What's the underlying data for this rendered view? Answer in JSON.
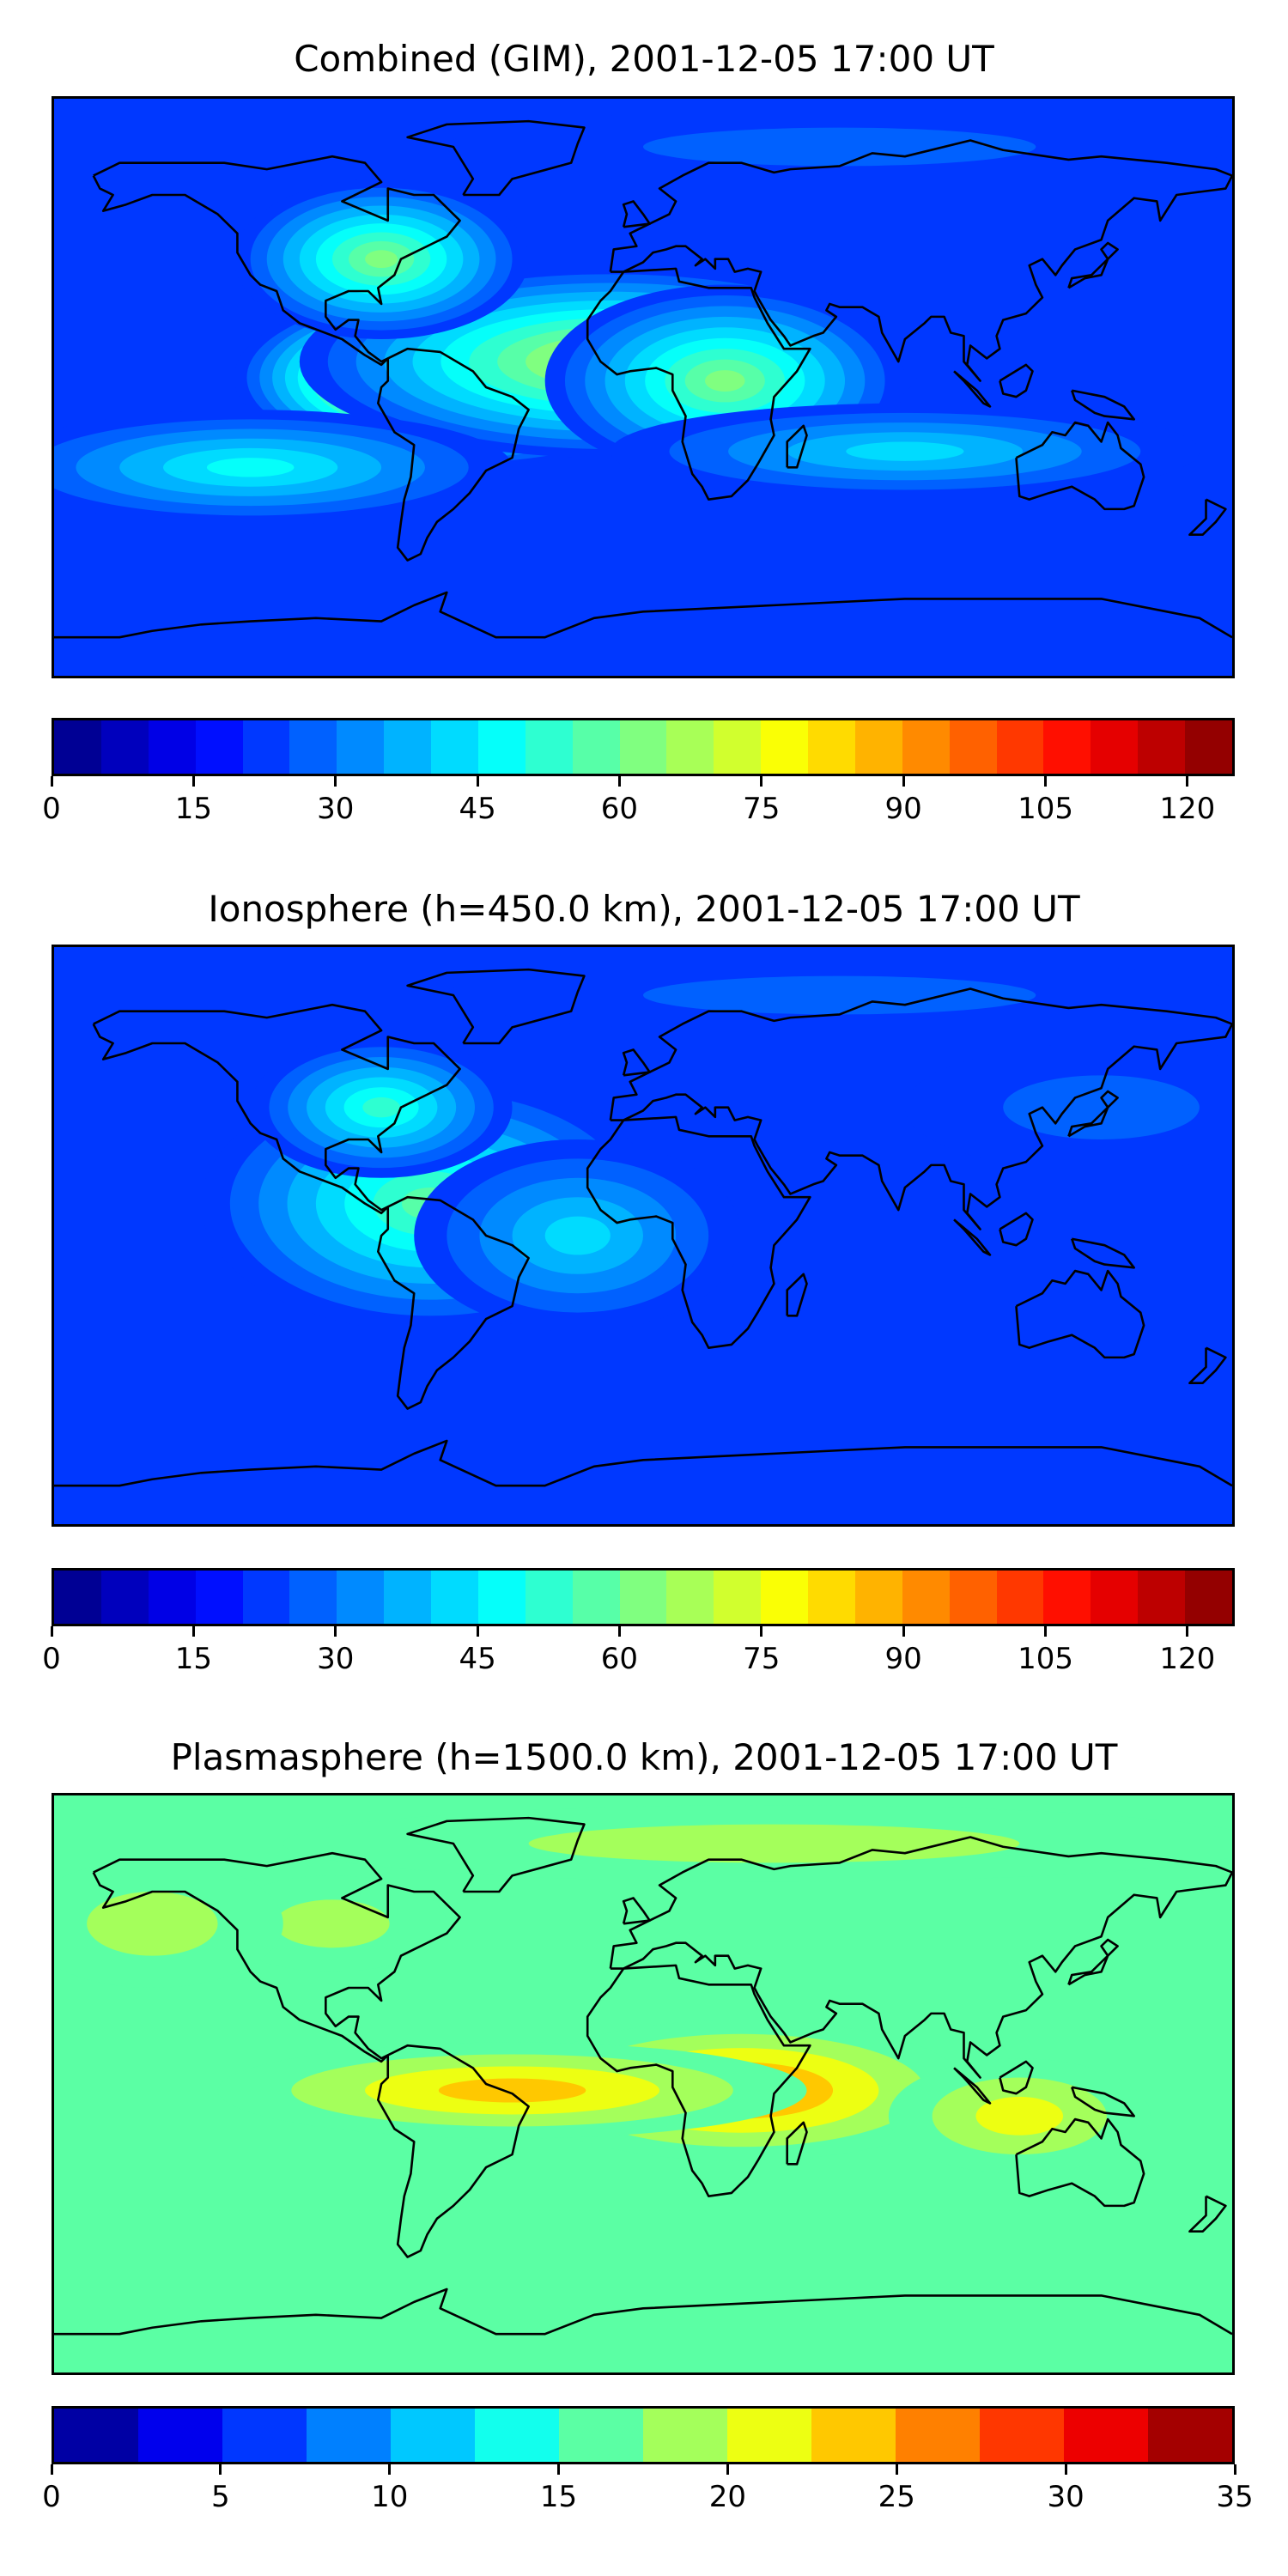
{
  "panels": [
    {
      "title": "Combined (GIM), 2001-12-05 17:00 UT",
      "vmin": 0,
      "vmax": 125,
      "levels": 25,
      "ticks": [
        "0",
        "15",
        "30",
        "45",
        "60",
        "75",
        "90",
        "105",
        "120"
      ],
      "tick_values": [
        0,
        15,
        30,
        45,
        60,
        75,
        90,
        105,
        120
      ],
      "features": {
        "background_level": 4,
        "blobs": [
          {
            "name": "south-america-tropical-peak",
            "lon": -55,
            "lat": 3,
            "level": 21,
            "rx": 70,
            "ry": 28
          },
          {
            "name": "atlantic-equatorial-band",
            "lon": -10,
            "lat": 8,
            "level": 14,
            "rx": 95,
            "ry": 30
          },
          {
            "name": "north-america-midlat",
            "lon": -80,
            "lat": 40,
            "level": 12,
            "rx": 45,
            "ry": 25
          },
          {
            "name": "africa-equatorial",
            "lon": 25,
            "lat": 2,
            "level": 12,
            "rx": 55,
            "ry": 30
          },
          {
            "name": "pacific-south-band",
            "lon": -120,
            "lat": -25,
            "level": 9,
            "rx": 80,
            "ry": 18
          },
          {
            "name": "southern-indian-band",
            "lon": 80,
            "lat": -20,
            "level": 8,
            "rx": 90,
            "ry": 15
          },
          {
            "name": "arctic-low",
            "lon": 60,
            "lat": 75,
            "level": 2,
            "rx": 120,
            "ry": 12
          }
        ]
      }
    },
    {
      "title": "Ionosphere  (h=450.0 km), 2001-12-05 17:00 UT",
      "vmin": 0,
      "vmax": 125,
      "levels": 25,
      "ticks": [
        "0",
        "15",
        "30",
        "45",
        "60",
        "75",
        "90",
        "105",
        "120"
      ],
      "tick_values": [
        0,
        15,
        30,
        45,
        60,
        75,
        90,
        105,
        120
      ],
      "features": {
        "background_level": 4,
        "blobs": [
          {
            "name": "south-america-peak",
            "lon": -60,
            "lat": 5,
            "level": 17,
            "rx": 40,
            "ry": 25
          },
          {
            "name": "western-hemisphere-band",
            "lon": -65,
            "lat": 10,
            "level": 11,
            "rx": 70,
            "ry": 40
          },
          {
            "name": "north-america-midlat",
            "lon": -80,
            "lat": 40,
            "level": 10,
            "rx": 40,
            "ry": 22
          },
          {
            "name": "atlantic-tropic",
            "lon": -20,
            "lat": 0,
            "level": 8,
            "rx": 50,
            "ry": 30
          },
          {
            "name": "east-asia-low",
            "lon": 140,
            "lat": 40,
            "level": 2,
            "rx": 60,
            "ry": 20
          },
          {
            "name": "arctic-low",
            "lon": 60,
            "lat": 75,
            "level": 2,
            "rx": 120,
            "ry": 12
          }
        ]
      }
    },
    {
      "title": "Plasmasphere (h=1500.0 km), 2001-12-05 17:00 UT",
      "vmin": 0,
      "vmax": 35,
      "levels": 14,
      "ticks": [
        "0",
        "5",
        "10",
        "15",
        "20",
        "25",
        "30",
        "35"
      ],
      "tick_values": [
        0,
        5,
        10,
        15,
        20,
        25,
        30,
        35
      ],
      "features": {
        "background_level": 6,
        "blobs": [
          {
            "name": "east-africa-peak",
            "lon": 40,
            "lat": 0,
            "level": 12,
            "rx": 25,
            "ry": 18
          },
          {
            "name": "africa-indian-band",
            "lon": 30,
            "lat": -2,
            "level": 10,
            "rx": 70,
            "ry": 22
          },
          {
            "name": "tropical-belt",
            "lon": -40,
            "lat": -2,
            "level": 9,
            "rx": 90,
            "ry": 15
          },
          {
            "name": "indonesia-australia",
            "lon": 115,
            "lat": -10,
            "level": 8,
            "rx": 40,
            "ry": 18
          },
          {
            "name": "north-america-low",
            "lon": -95,
            "lat": 50,
            "level": 2,
            "rx": 35,
            "ry": 15
          },
          {
            "name": "north-pacific-low",
            "lon": -150,
            "lat": 50,
            "level": 4,
            "rx": 40,
            "ry": 20
          },
          {
            "name": "arctic-low",
            "lon": 40,
            "lat": 75,
            "level": 1,
            "rx": 150,
            "ry": 12
          }
        ]
      }
    }
  ],
  "colormap": "jet",
  "coastline_color": "#000000"
}
